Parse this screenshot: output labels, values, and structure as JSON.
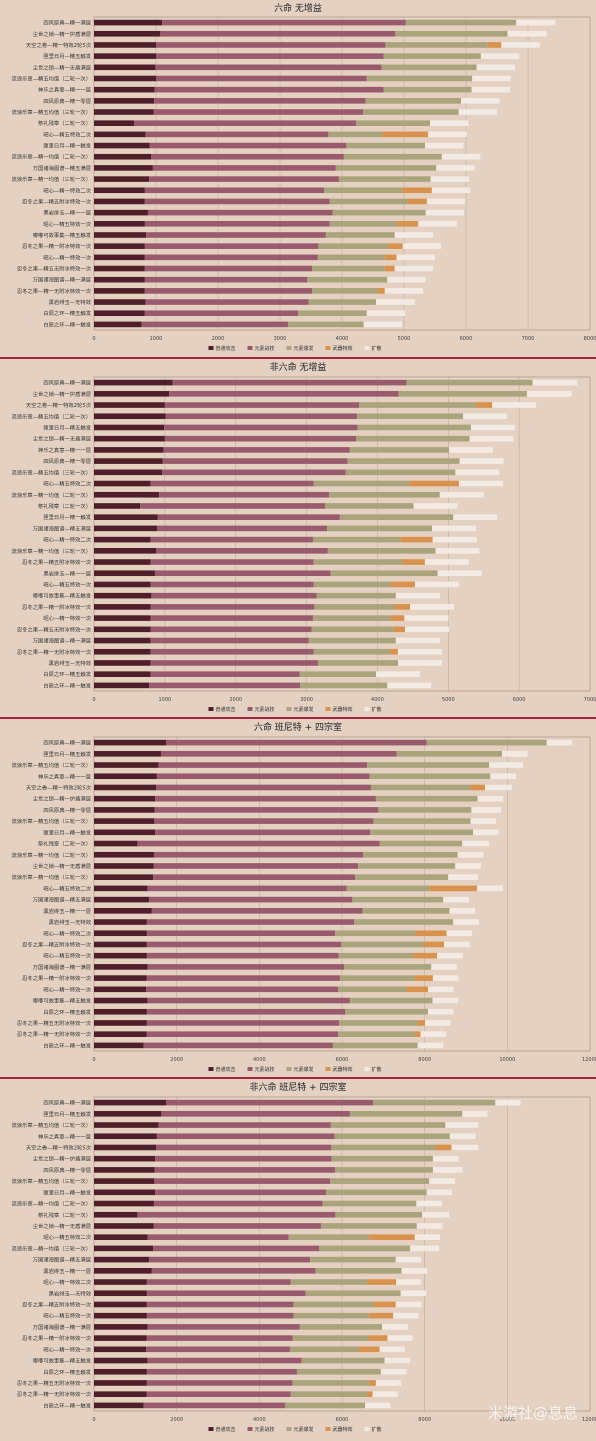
{
  "legend_labels": [
    "普通攻击",
    "元素战技",
    "元素爆发",
    "武器特效",
    "扩散"
  ],
  "colors": {
    "background": "#e4d1c1",
    "divider": "#a3213a",
    "普通攻击": "#4e1f2a",
    "元素战技": "#9a5a6e",
    "元素爆发": "#aaa47c",
    "武器特效": "#d8924e",
    "扩散": "#f3ebe3"
  },
  "watermark": "米游社@息息",
  "chart_data": [
    {
      "type": "bar",
      "orientation": "horizontal",
      "stacked": true,
      "title": "六命 无增益",
      "xlim": [
        0,
        8000
      ],
      "xticks": [
        0,
        1000,
        2000,
        3000,
        4000,
        5000,
        6000,
        7000,
        8000
      ],
      "grid": true,
      "legend_position": "bottom",
      "categories": [
        "四风原典—精一满层",
        "尘世之锁—精一护盾满层",
        "天空之卷—精一特效2轮5次",
        "匣里日月—精五触发",
        "尘世之锁—精一无盾满层",
        "流浪乐章—精五均值（二轮一次）",
        "神乐之真意—精一一层",
        "四风原典—精一零层",
        "流浪乐章—精五均值（三轮一次）",
        "祭礼残章（二轮一次）",
        "昭心—精五特效二次",
        "匣里日月—精一触发",
        "流浪乐章—精一均值（二轮一次）",
        "万国诸海图谱—精五满层",
        "流浪乐章—精一均值（三轮一次）",
        "昭心—精一特效二次",
        "忍冬之果—精五附冰特效一次",
        "黑岩绯玉—精一一层",
        "昭心—精五特效一次",
        "嘟嘟可故事集—精五触发",
        "忍冬之果—精一附冰特效一次",
        "昭心—精一特效一次",
        "忍冬之果—精五无附冰特效一次",
        "万国诸海图谱—精一满层",
        "忍冬之果—精一无附冰特效一次",
        "黑岩绯玉—无特效",
        "白辰之环—精五触发",
        "白辰之环—精一触发"
      ],
      "series": [
        {
          "name": "普通攻击",
          "values": [
            1100,
            1070,
            1000,
            1000,
            990,
            1000,
            980,
            970,
            960,
            650,
            830,
            900,
            920,
            950,
            890,
            820,
            820,
            870,
            820,
            840,
            820,
            820,
            820,
            820,
            820,
            830,
            820,
            770
          ]
        },
        {
          "name": "元素战技",
          "values": [
            3930,
            3790,
            3700,
            3670,
            3650,
            3400,
            3690,
            3410,
            3380,
            3580,
            2950,
            3170,
            3110,
            2950,
            3060,
            2890,
            2980,
            2980,
            2980,
            2900,
            2800,
            2790,
            2700,
            2620,
            2700,
            2630,
            2470,
            2360
          ]
        },
        {
          "name": "元素爆发",
          "values": [
            1780,
            1810,
            1650,
            1570,
            1530,
            1700,
            1420,
            1540,
            1540,
            1190,
            870,
            1270,
            1580,
            1620,
            1480,
            1260,
            1260,
            1500,
            1090,
            1110,
            1130,
            1080,
            1170,
            1290,
            1060,
            1090,
            1110,
            1220
          ]
        },
        {
          "name": "武器特效",
          "values": [
            0,
            0,
            220,
            0,
            0,
            0,
            0,
            0,
            0,
            0,
            740,
            0,
            0,
            0,
            0,
            480,
            310,
            0,
            340,
            0,
            230,
            190,
            160,
            0,
            110,
            0,
            0,
            0
          ]
        },
        {
          "name": "扩散",
          "values": [
            630,
            630,
            620,
            620,
            620,
            620,
            620,
            620,
            620,
            620,
            620,
            620,
            620,
            620,
            620,
            620,
            620,
            620,
            620,
            620,
            620,
            620,
            620,
            620,
            620,
            620,
            620,
            620
          ]
        }
      ]
    },
    {
      "type": "bar",
      "orientation": "horizontal",
      "stacked": true,
      "title": "非六命 无增益",
      "xlim": [
        0,
        7000
      ],
      "xticks": [
        0,
        1000,
        2000,
        3000,
        4000,
        5000,
        6000,
        7000
      ],
      "grid": true,
      "legend_position": "bottom",
      "categories": [
        "四风原典—精一满层",
        "尘世之锁—精一护盾满层",
        "天空之卷—精一特效2轮5次",
        "流浪乐章—精五均值（二轮一次）",
        "匣里日月—精五触发",
        "尘世之锁—精一无盾满层",
        "神乐之真意—精一一层",
        "四风原典—精一零层",
        "流浪乐章—精五均值（三轮一次）",
        "昭心—精五特效二次",
        "流浪乐章—精一均值（二轮一次）",
        "祭礼残章（二轮一次）",
        "匣里日月—精一触发",
        "万国诸海图谱—精五满层",
        "昭心—精一特效二次",
        "流浪乐章—精一均值（三轮一次）",
        "忍冬之果—精五附冰特效一次",
        "黑岩绯玉—精一一层",
        "昭心—精五特效一次",
        "嘟嘟可故事集—精五触发",
        "忍冬之果—精一附冰特效一次",
        "昭心—精一特效一次",
        "忍冬之果—精五无附冰特效一次",
        "万国诸海图谱—精一满层",
        "忍冬之果—精一无附冰特效一次",
        "黑岩绯玉—无特效",
        "白辰之环—精五触发",
        "白辰之环—精一触发"
      ],
      "series": [
        {
          "name": "普通攻击",
          "values": [
            1110,
            1060,
            1000,
            1010,
            990,
            1000,
            980,
            970,
            960,
            800,
            920,
            650,
            900,
            890,
            800,
            880,
            800,
            860,
            800,
            810,
            800,
            800,
            800,
            800,
            800,
            800,
            800,
            780
          ]
        },
        {
          "name": "元素战技",
          "values": [
            3300,
            3240,
            2740,
            2700,
            2730,
            2700,
            2630,
            2610,
            2590,
            2300,
            2400,
            2610,
            2570,
            2400,
            2290,
            2420,
            2300,
            2480,
            2300,
            2330,
            2310,
            2290,
            2270,
            2230,
            2300,
            2360,
            2100,
            2130
          ]
        },
        {
          "name": "元素爆发",
          "values": [
            1780,
            1810,
            1650,
            1500,
            1600,
            1600,
            1400,
            1580,
            1550,
            1350,
            1560,
            1250,
            1600,
            1480,
            1240,
            1520,
            1250,
            1510,
            1090,
            1120,
            1130,
            1100,
            1160,
            1230,
            1080,
            1130,
            1080,
            1230
          ]
        },
        {
          "name": "武器特效",
          "values": [
            0,
            0,
            230,
            0,
            0,
            0,
            0,
            0,
            0,
            700,
            0,
            0,
            0,
            0,
            450,
            0,
            320,
            0,
            340,
            0,
            220,
            190,
            160,
            0,
            110,
            0,
            0,
            0
          ]
        },
        {
          "name": "扩散",
          "values": [
            630,
            630,
            620,
            620,
            620,
            620,
            620,
            620,
            620,
            620,
            620,
            620,
            620,
            620,
            620,
            620,
            620,
            620,
            620,
            620,
            620,
            620,
            620,
            620,
            620,
            620,
            620,
            620
          ]
        }
      ]
    },
    {
      "type": "bar",
      "orientation": "horizontal",
      "stacked": true,
      "title": "六命 班尼特 + 四宗室",
      "xlim": [
        0,
        12000
      ],
      "xticks": [
        0,
        2000,
        4000,
        6000,
        8000,
        10000,
        12000
      ],
      "grid": true,
      "legend_position": "bottom",
      "categories": [
        "四风原典—精一满层",
        "匣里日月—精五触发",
        "流浪乐章—精五均值（二轮一次）",
        "神乐之真意—精一一层",
        "天空之卷—精一特效2轮5次",
        "尘世之锁—精一护盾满层",
        "四风原典—精一零层",
        "流浪乐章—精五均值（三轮一次）",
        "匣里日月—精一触发",
        "祭礼残章（二轮一次）",
        "流浪乐章—精一均值（二轮一次）",
        "尘世之锁—精一无盾满层",
        "流浪乐章—精一均值（三轮一次）",
        "昭心—精五特效二次",
        "万国诸海图谱—精五满层",
        "黑岩绯玉—精一一层",
        "黑岩绯玉—无特效",
        "昭心—精一特效二次",
        "忍冬之果—精五附冰特效一次",
        "昭心—精五特效一次",
        "万国诸海图谱—精一满层",
        "忍冬之果—精一附冰特效一次",
        "昭心—精一特效一次",
        "嘟嘟可故事集—精五触发",
        "白辰之环—精五触发",
        "忍冬之果—精五无附冰特效一次",
        "忍冬之果—精一无附冰特效一次",
        "白辰之环—精一触发"
      ],
      "series": [
        {
          "name": "普通攻击",
          "values": [
            1750,
            1620,
            1560,
            1520,
            1500,
            1480,
            1470,
            1460,
            1480,
            1050,
            1450,
            1440,
            1430,
            1300,
            1330,
            1400,
            1280,
            1280,
            1270,
            1280,
            1300,
            1270,
            1260,
            1300,
            1280,
            1280,
            1270,
            1200
          ]
        },
        {
          "name": "元素战技",
          "values": [
            6300,
            5700,
            5050,
            5150,
            5200,
            5340,
            5410,
            5300,
            5200,
            5860,
            5060,
            4950,
            4890,
            4810,
            4920,
            5100,
            5010,
            4550,
            4710,
            4640,
            4750,
            4680,
            4650,
            4890,
            4800,
            4650,
            4640,
            4580
          ]
        },
        {
          "name": "元素爆发",
          "values": [
            2900,
            2550,
            2950,
            2920,
            2410,
            2460,
            2250,
            2350,
            2490,
            2000,
            2290,
            2350,
            2250,
            2010,
            2200,
            2100,
            2400,
            1950,
            1990,
            1800,
            2110,
            1800,
            1650,
            2000,
            2000,
            1900,
            1850,
            2050
          ]
        },
        {
          "name": "武器特效",
          "values": [
            0,
            0,
            0,
            0,
            350,
            0,
            0,
            0,
            0,
            0,
            0,
            0,
            0,
            1150,
            0,
            0,
            0,
            750,
            500,
            580,
            0,
            450,
            520,
            0,
            0,
            180,
            140,
            0
          ]
        },
        {
          "name": "扩散",
          "values": [
            620,
            620,
            820,
            620,
            650,
            620,
            720,
            620,
            620,
            650,
            620,
            620,
            720,
            620,
            620,
            620,
            620,
            620,
            620,
            620,
            620,
            620,
            620,
            620,
            620,
            620,
            620,
            620
          ]
        }
      ]
    },
    {
      "type": "bar",
      "orientation": "horizontal",
      "stacked": true,
      "title": "非六命 班尼特 + 四宗室",
      "xlim": [
        0,
        12000
      ],
      "xticks": [
        0,
        2000,
        4000,
        6000,
        8000,
        10000,
        12000
      ],
      "grid": true,
      "legend_position": "bottom",
      "categories": [
        "四风原典—精一满层",
        "匣里日月—精五触发",
        "流浪乐章—精五均值（二轮一次）",
        "神乐之真意—精一一层",
        "天空之卷—精一特效2轮5次",
        "尘世之锁—精一护盾满层",
        "四风原典—精一零层",
        "流浪乐章—精五均值（三轮一次）",
        "匣里日月—精一触发",
        "流浪乐章—精一均值（二轮一次）",
        "祭礼残章（二轮一次）",
        "尘世之锁—精一无盾满层",
        "昭心—精五特效二次",
        "流浪乐章—精一均值（三轮一次）",
        "万国诸海图谱—精五满层",
        "黑岩绯玉—精一一层",
        "昭心—精一特效二次",
        "黑岩绯玉—无特效",
        "忍冬之果—精五附冰特效一次",
        "昭心—精五特效一次",
        "万国诸海图谱—精一满层",
        "忍冬之果—精一附冰特效一次",
        "昭心—精一特效一次",
        "嘟嘟可故事集—精五触发",
        "白辰之环—精五触发",
        "忍冬之果—精五无附冰特效一次",
        "忍冬之果—精一无附冰特效一次",
        "白辰之环—精一触发"
      ],
      "series": [
        {
          "name": "普通攻击",
          "values": [
            1750,
            1630,
            1560,
            1520,
            1500,
            1480,
            1470,
            1460,
            1480,
            1450,
            1050,
            1440,
            1300,
            1430,
            1330,
            1400,
            1280,
            1280,
            1270,
            1280,
            1300,
            1270,
            1260,
            1300,
            1280,
            1280,
            1270,
            1200
          ]
        },
        {
          "name": "元素战技",
          "values": [
            5000,
            4560,
            4170,
            4300,
            4240,
            4270,
            4360,
            4250,
            4140,
            4080,
            4790,
            4050,
            3410,
            4020,
            3900,
            3960,
            3480,
            3840,
            3560,
            3550,
            3680,
            3540,
            3480,
            3720,
            3630,
            3520,
            3490,
            3420
          ]
        },
        {
          "name": "元素爆发",
          "values": [
            2960,
            2720,
            2770,
            2790,
            2510,
            2450,
            2370,
            2400,
            2430,
            2270,
            2100,
            2320,
            1950,
            2200,
            2070,
            2080,
            1850,
            2300,
            1950,
            1830,
            1990,
            1830,
            1670,
            2010,
            2030,
            1850,
            1850,
            1940
          ]
        },
        {
          "name": "武器特效",
          "values": [
            0,
            0,
            0,
            0,
            400,
            0,
            0,
            0,
            0,
            0,
            0,
            0,
            1100,
            0,
            0,
            0,
            700,
            0,
            520,
            580,
            0,
            460,
            500,
            0,
            0,
            170,
            130,
            0
          ]
        },
        {
          "name": "扩散",
          "values": [
            610,
            610,
            800,
            620,
            650,
            620,
            720,
            620,
            610,
            620,
            650,
            620,
            610,
            700,
            620,
            620,
            610,
            620,
            620,
            610,
            620,
            610,
            610,
            620,
            620,
            610,
            610,
            610
          ]
        }
      ]
    }
  ]
}
